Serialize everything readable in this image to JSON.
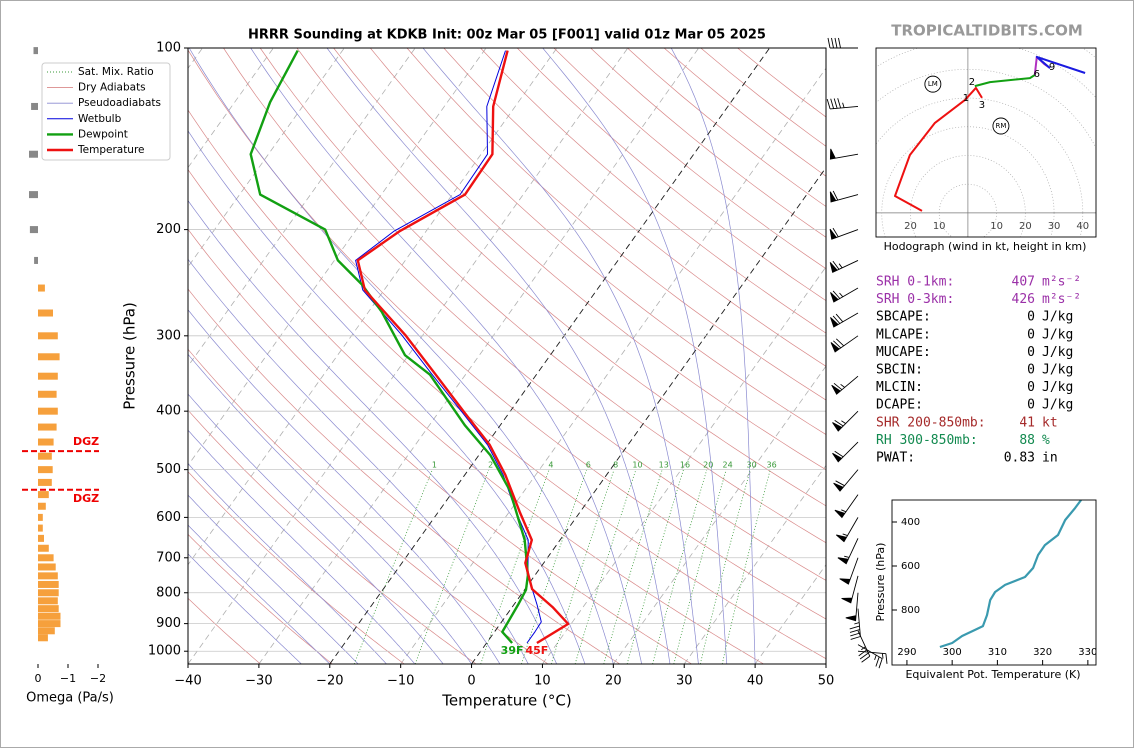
{
  "branding": "TROPICALTIDBITS.COM",
  "chart_data": [
    {
      "type": "skewt",
      "title": "HRRR Sounding at KDKB Init: 00z Mar 05 [F001] valid 01z Mar 05 2025",
      "x_label": "Temperature (°C)",
      "y_label": "Pressure (hPa)",
      "xlim": [
        -40,
        50
      ],
      "xticks": [
        {
          "value": -40,
          "label": "−40"
        },
        {
          "value": -30,
          "label": "−30"
        },
        {
          "value": -20,
          "label": "−20"
        },
        {
          "value": -10,
          "label": "−10"
        },
        0,
        10,
        20,
        30,
        40,
        50
      ],
      "ylim": [
        1050,
        100
      ],
      "yticks": [
        100,
        200,
        300,
        400,
        500,
        600,
        700,
        800,
        900,
        1000
      ],
      "log_scale": true,
      "grid": true,
      "legend": "upper left",
      "reference_lines": [
        {
          "name": "Sat. Mix. Ratio",
          "color": "#3a9a3a",
          "style": "dotted",
          "values": [
            1,
            2,
            4,
            6,
            8,
            10,
            13,
            16,
            20,
            24,
            30,
            36
          ]
        },
        {
          "name": "Dry Adiabats",
          "color": "#d98a8a",
          "style": "solid"
        },
        {
          "name": "Pseudoadiabats",
          "color": "#8a8ad0",
          "style": "solid"
        }
      ],
      "highlighted_isotherms": [
        -20,
        0
      ],
      "series": [
        {
          "name": "Wetbulb",
          "color": "#0000dd",
          "pressure": [
            969,
            929,
            894,
            838,
            748,
            654,
            588,
            510,
            455,
            403,
            346,
            299,
            252,
            225,
            201,
            175,
            150,
            125,
            101
          ],
          "values": [
            5.7,
            5.7,
            5.6,
            3.3,
            -1.0,
            -4.5,
            -9.0,
            -14.6,
            -19.8,
            -26.5,
            -35.0,
            -43.0,
            -53.0,
            -57.0,
            -54.5,
            -48.9,
            -49.1,
            -54.0,
            -57.0
          ]
        },
        {
          "name": "Dewpoint",
          "color": "#12a012",
          "pressure": [
            969,
            929,
            838,
            791,
            748,
            654,
            541,
            473,
            422,
            348,
            323,
            274,
            247,
            225,
            200,
            175,
            150,
            123,
            101
          ],
          "values": [
            3.6,
            1.1,
            0.6,
            0.2,
            -1.0,
            -5.0,
            -12.1,
            -18.4,
            -25.0,
            -35.0,
            -40.5,
            -48.1,
            -53.6,
            -59.5,
            -64.4,
            -77.1,
            -82.5,
            -85.0,
            -86.3
          ]
        },
        {
          "name": "Temperature",
          "color": "#ee1111",
          "pressure": [
            969,
            901,
            845,
            789,
            714,
            654,
            588,
            510,
            455,
            403,
            346,
            299,
            252,
            225,
            201,
            175,
            150,
            125,
            101
          ],
          "values": [
            7.1,
            9.6,
            5.7,
            1.0,
            -2.6,
            -4.0,
            -8.5,
            -14.3,
            -19.5,
            -26.2,
            -34.5,
            -42.5,
            -52.7,
            -56.7,
            -53.7,
            -48.2,
            -48.4,
            -53.1,
            -56.7
          ]
        }
      ],
      "surface_labels": {
        "Dewpoint": "39F",
        "Temperature": "45F"
      },
      "wind_barbs": {
        "pressure": [
          1000,
          975,
          925,
          850,
          800,
          750,
          700,
          650,
          600,
          550,
          500,
          450,
          400,
          350,
          300,
          275,
          250,
          225,
          200,
          175,
          150,
          125,
          100
        ],
        "direction": [
          95,
          120,
          155,
          175,
          185,
          195,
          200,
          205,
          210,
          215,
          220,
          225,
          225,
          230,
          235,
          240,
          240,
          245,
          250,
          255,
          260,
          265,
          270
        ],
        "speed": [
          15,
          25,
          35,
          45,
          50,
          50,
          50,
          55,
          55,
          55,
          60,
          60,
          65,
          65,
          70,
          70,
          65,
          65,
          60,
          60,
          50,
          45,
          40
        ]
      }
    },
    {
      "type": "omega",
      "x_label": "Omega (Pa/s)",
      "xlim": [
        0.6,
        -2.4
      ],
      "xticks": [
        0,
        {
          "value": -1,
          "label": "−1"
        },
        {
          "value": -2,
          "label": "−2"
        }
      ],
      "ylim": [
        1050,
        100
      ],
      "log_scale": true,
      "color": "#f6a03c",
      "positive_color": "#888888",
      "pressure": [
        101,
        125,
        150,
        175,
        200,
        225,
        250,
        275,
        300,
        325,
        350,
        375,
        400,
        425,
        450,
        475,
        500,
        525,
        550,
        575,
        600,
        625,
        650,
        675,
        700,
        725,
        750,
        775,
        800,
        825,
        850,
        875,
        900,
        925,
        950
      ],
      "values": [
        0.15,
        0.23,
        0.3,
        0.3,
        0.27,
        0.13,
        -0.23,
        -0.5,
        -0.66,
        -0.72,
        -0.66,
        -0.62,
        -0.66,
        -0.62,
        -0.52,
        -0.46,
        -0.49,
        -0.46,
        -0.36,
        -0.26,
        -0.16,
        -0.16,
        -0.2,
        -0.36,
        -0.52,
        -0.59,
        -0.66,
        -0.69,
        -0.69,
        -0.66,
        -0.69,
        -0.75,
        -0.75,
        -0.56,
        -0.33
      ],
      "dgz": {
        "label": "DGZ",
        "color": "#ee0000",
        "pressure": [
          466,
          540
        ]
      }
    },
    {
      "type": "hodograph",
      "title": "Hodograph (wind in kt, height in km)",
      "xlim": [
        -32,
        44.6
      ],
      "ylim": [
        -8.4,
        57.5
      ],
      "xticks": [
        {
          "value": -20,
          "label": "20"
        },
        {
          "value": -10,
          "label": "10"
        },
        10,
        20,
        30,
        40
      ],
      "series": [
        {
          "color": "#ee1111",
          "u": [
            -16,
            -25.4,
            -20.2,
            -11.5,
            -1,
            2.8,
            4.9
          ],
          "v": [
            0.7,
            5.9,
            20.2,
            31.4,
            39.4,
            43.6,
            40.1
          ]
        },
        {
          "color": "#12a012",
          "u": [
            2.4,
            7.7,
            21.6,
            23.3
          ],
          "v": [
            44.2,
            45.6,
            47,
            48.1
          ]
        },
        {
          "color": "#b030c0",
          "u": [
            23.3,
            24,
            26.5,
            28.6
          ],
          "v": [
            48.1,
            54.4,
            52,
            50.5
          ]
        },
        {
          "color": "#1a1ae0",
          "u": [
            28.6,
            24,
            40.8
          ],
          "v": [
            50.5,
            54.4,
            48.8
          ]
        }
      ],
      "heights": {
        "values": [
          1,
          2,
          3,
          6,
          9
        ],
        "u": [
          -0.7,
          1.4,
          4.9,
          24,
          29.3
        ],
        "v": [
          40.1,
          45.6,
          37.6,
          48.4,
          50.9
        ]
      },
      "storm_motion": [
        {
          "label": "LM",
          "u": -12.2,
          "v": 44.9
        },
        {
          "label": "RM",
          "u": 11.5,
          "v": 30.3
        }
      ]
    },
    {
      "type": "line",
      "x_label": "Equivalent Pot. Temperature (K)",
      "y_label": "Pressure (hPa)",
      "xlim": [
        286.7,
        331.8
      ],
      "xticks": [
        290,
        300,
        310,
        320,
        330
      ],
      "ylim": [
        1050,
        300
      ],
      "yticks": [
        400,
        600,
        800
      ],
      "color": "#3a9aaf",
      "values": [
        297.3,
        300,
        302.2,
        305,
        306.8,
        307.7,
        308.4,
        309.5,
        311.7,
        316.1,
        317.9,
        319,
        320.5,
        323.4,
        325,
        327.2,
        328.5
      ],
      "pressure": [
        968,
        950,
        918,
        891,
        873,
        823,
        755,
        718,
        686,
        650,
        609,
        550,
        505,
        459,
        391,
        336,
        300
      ]
    }
  ],
  "indices": [
    {
      "label": "SRH 0-1km:",
      "value": 407,
      "unit": "m²s⁻²",
      "color": "#9b30a8"
    },
    {
      "label": "SRH 0-3km:",
      "value": 426,
      "unit": "m²s⁻²",
      "color": "#9b30a8"
    },
    {
      "label": "SBCAPE:",
      "value": 0,
      "unit": "J/kg",
      "color": "#000000"
    },
    {
      "label": "MLCAPE:",
      "value": 0,
      "unit": "J/kg",
      "color": "#000000"
    },
    {
      "label": "MUCAPE:",
      "value": 0,
      "unit": "J/kg",
      "color": "#000000"
    },
    {
      "label": "SBCIN:",
      "value": 0,
      "unit": "J/kg",
      "color": "#000000"
    },
    {
      "label": "MLCIN:",
      "value": 0,
      "unit": "J/kg",
      "color": "#000000"
    },
    {
      "label": "DCAPE:",
      "value": 0,
      "unit": "J/kg",
      "color": "#000000"
    },
    {
      "label": "SHR 200-850mb:",
      "value": 41,
      "unit": "kt",
      "color": "#a52a2a"
    },
    {
      "label": "RH 300-850mb:",
      "value": 88,
      "unit": "%",
      "color": "#138a50"
    },
    {
      "label": "PWAT:",
      "value": 0.83,
      "unit": "in",
      "color": "#000000"
    }
  ]
}
